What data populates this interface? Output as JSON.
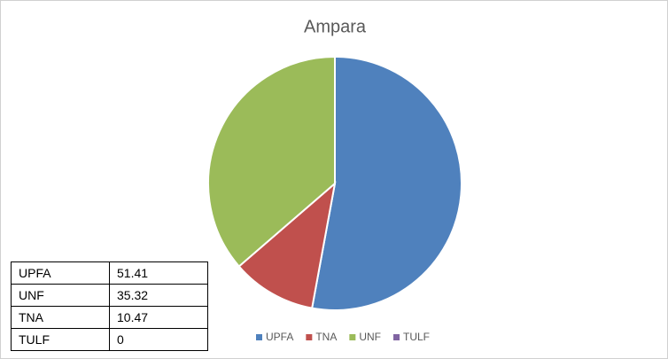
{
  "chart_data": {
    "type": "pie",
    "title": "Ampara",
    "categories": [
      "UPFA",
      "TNA",
      "UNF",
      "TULF"
    ],
    "values": [
      51.41,
      10.47,
      35.32,
      0
    ],
    "colors": [
      "#4f81bd",
      "#c0504d",
      "#9bbb59",
      "#8064a2"
    ]
  },
  "table": {
    "rows": [
      [
        "UPFA",
        51.41
      ],
      [
        "UNF",
        35.32
      ],
      [
        "TNA",
        10.47
      ],
      [
        "TULF",
        0
      ]
    ]
  }
}
